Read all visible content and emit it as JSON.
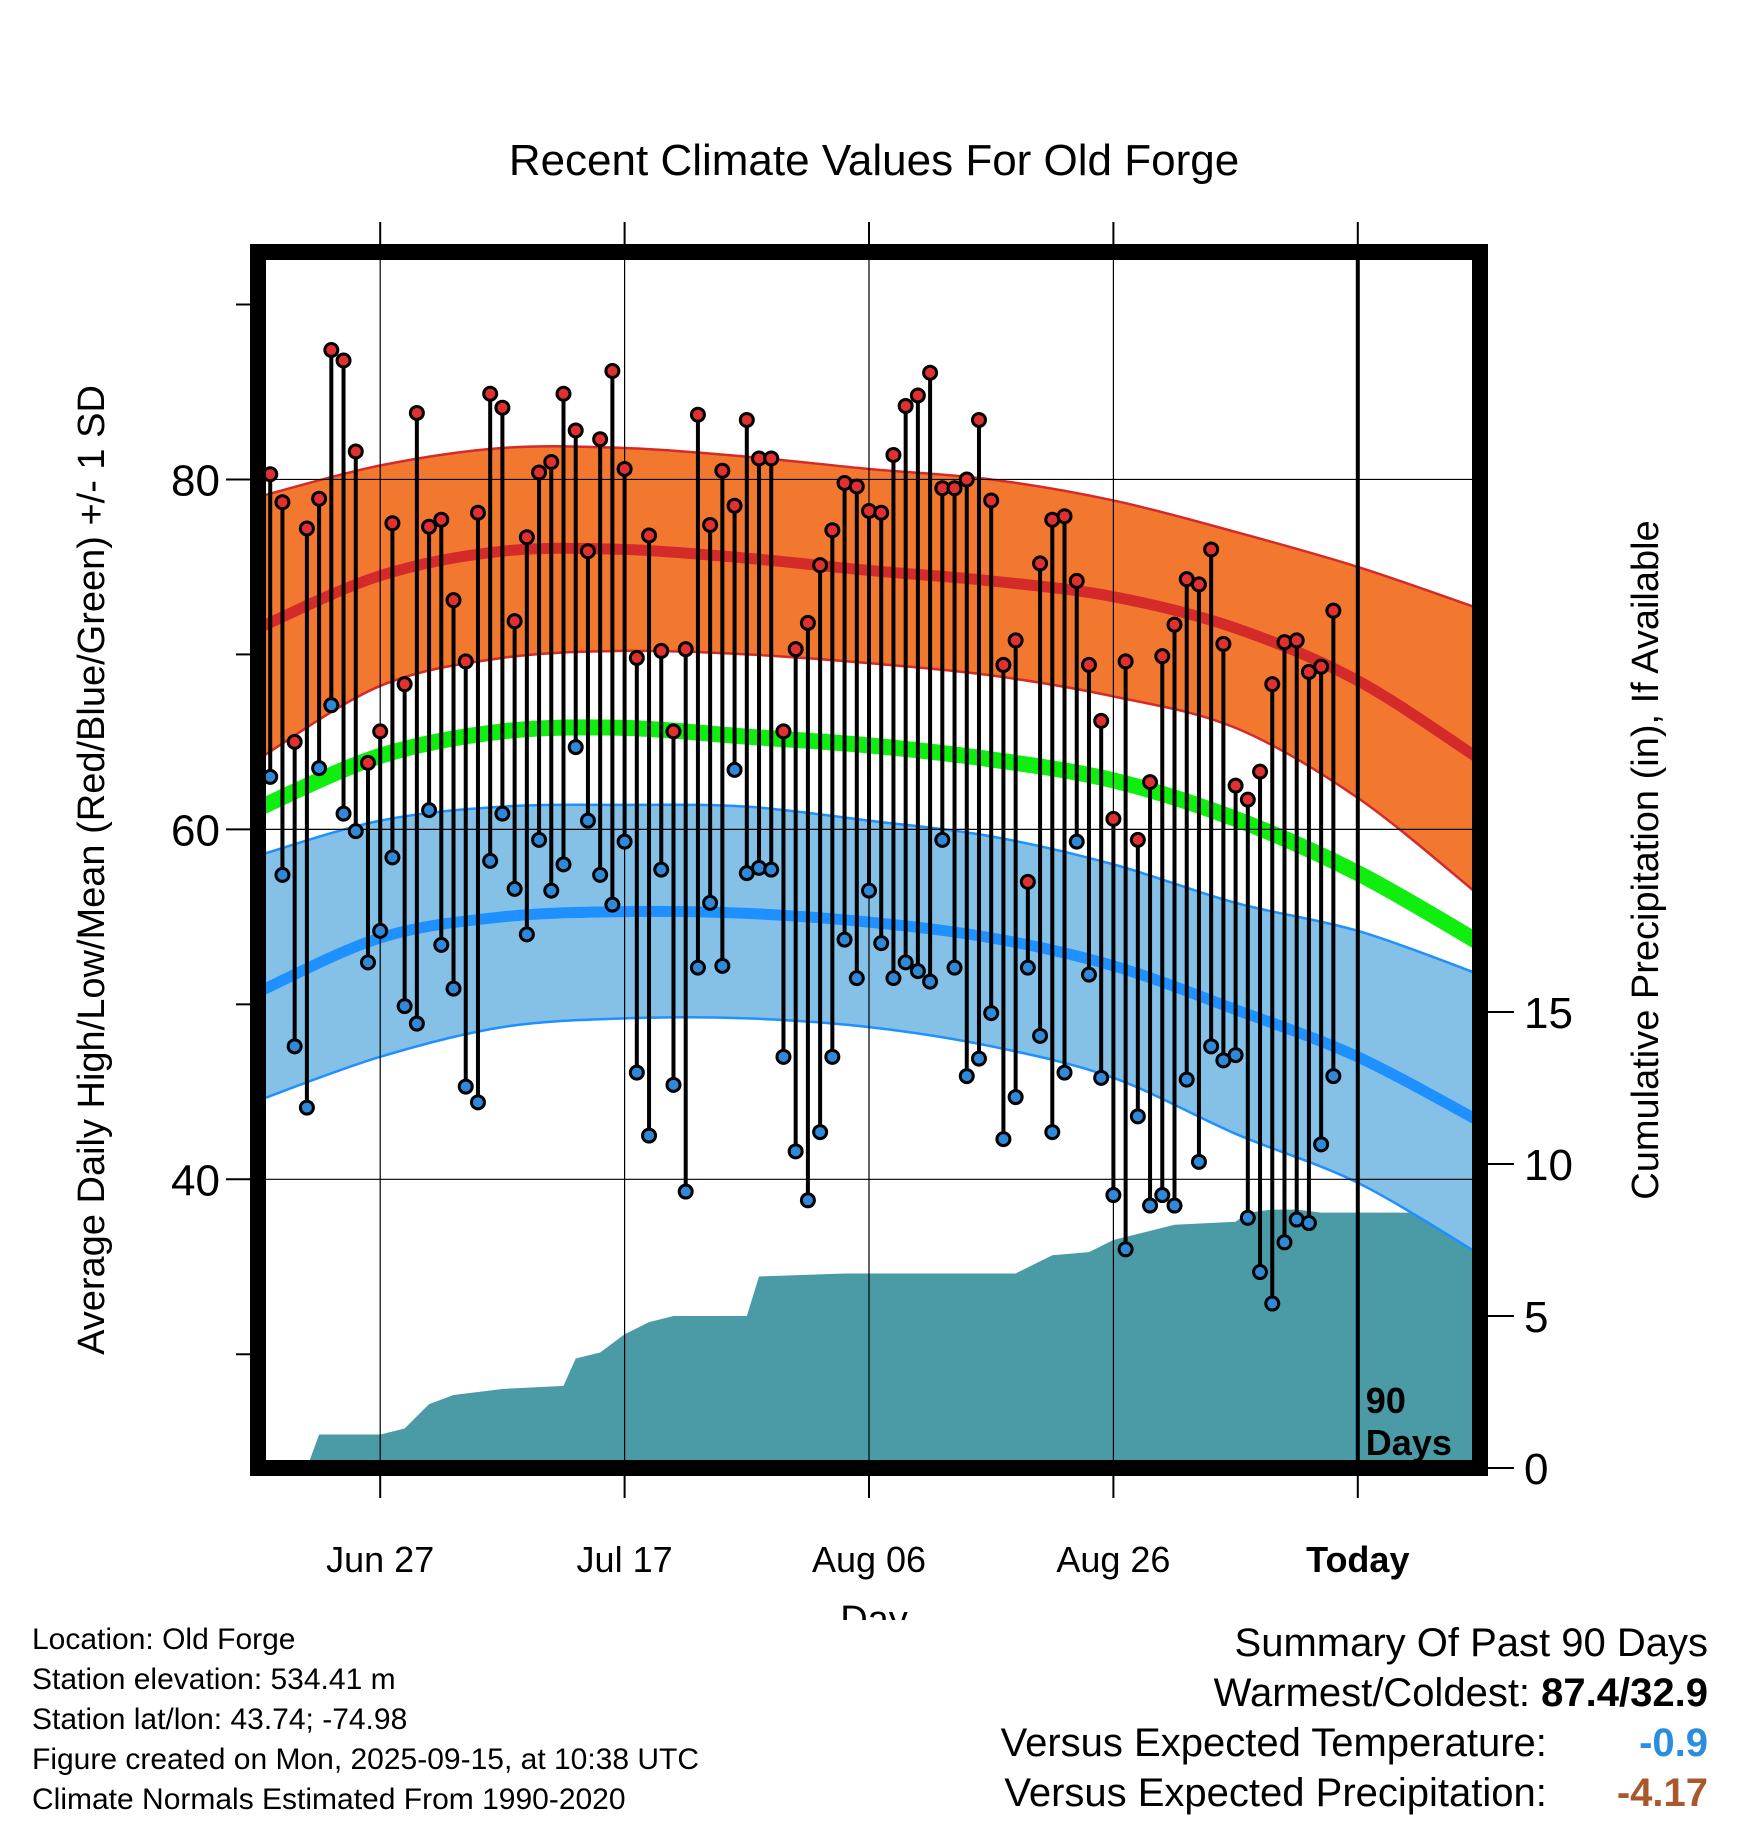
{
  "chart_data": {
    "type": "line",
    "title": "Recent Climate Values For Old Forge",
    "xlabel": "Day",
    "ylabel": "Average Daily High/Low/Mean (Red/Blue/Green) +/- 1 SD",
    "y2label": "Cumulative Precipitation (in), If Available",
    "x_tick_labels": [
      "Jun 27",
      "Jul 17",
      "Aug 06",
      "Aug 26",
      "Today"
    ],
    "x_tick_days": [
      10,
      30,
      50,
      70,
      90
    ],
    "xlim": [
      0,
      100
    ],
    "ylim": [
      23.5,
      93
    ],
    "y_ticks": [
      40,
      60,
      80
    ],
    "y_tick_labels": [
      "40",
      "60",
      "80"
    ],
    "y_minor_ticks": [
      30,
      50,
      70,
      90
    ],
    "y2lim": [
      0,
      40
    ],
    "y2_ticks": [
      0,
      5,
      10,
      15
    ],
    "y2_tick_labels": [
      "0",
      "5",
      "10",
      "15"
    ],
    "today_marker_label": [
      "90",
      "Days"
    ],
    "normals": {
      "day": [
        0,
        10,
        20,
        30,
        40,
        50,
        60,
        70,
        80,
        90,
        100
      ],
      "high_mean": [
        71.5,
        74.5,
        75.9,
        76.0,
        75.5,
        74.8,
        74.2,
        73.3,
        71.5,
        68.5,
        64.0
      ],
      "high_upper": [
        79.0,
        80.8,
        81.8,
        81.8,
        81.3,
        80.6,
        80.0,
        78.8,
        77.0,
        75.0,
        72.6
      ],
      "high_lower": [
        64.0,
        68.2,
        69.8,
        70.2,
        70.0,
        69.5,
        68.8,
        67.6,
        65.8,
        61.8,
        56.2
      ],
      "mean_normal": [
        61.2,
        64.2,
        65.6,
        65.8,
        65.3,
        64.8,
        64.0,
        62.8,
        60.6,
        57.5,
        53.5
      ],
      "low_mean": [
        50.7,
        53.8,
        55.0,
        55.3,
        55.2,
        54.7,
        53.8,
        52.2,
        49.7,
        47.0,
        43.3
      ],
      "low_upper": [
        58.5,
        60.5,
        61.3,
        61.4,
        61.3,
        60.5,
        59.6,
        58.0,
        55.8,
        54.2,
        51.7
      ],
      "low_lower": [
        44.5,
        47.0,
        48.7,
        49.2,
        49.2,
        48.7,
        47.6,
        45.8,
        42.6,
        39.8,
        35.7
      ]
    },
    "series": [
      {
        "name": "Daily High",
        "values": [
          65.8,
          80.3,
          78.7,
          65.0,
          77.2,
          78.9,
          87.4,
          86.8,
          81.6,
          63.8,
          65.6,
          77.5,
          68.3,
          83.8,
          77.3,
          77.7,
          73.1,
          69.6,
          78.1,
          84.9,
          84.1,
          71.9,
          76.7,
          80.4,
          81.0,
          84.9,
          82.8,
          75.9,
          82.3,
          86.2,
          80.6,
          69.8,
          76.8,
          70.2,
          65.6,
          70.3,
          83.7,
          77.4,
          80.5,
          78.5,
          83.4,
          81.2,
          81.2,
          65.6,
          70.3,
          71.8,
          75.1,
          77.1,
          79.8,
          79.6,
          78.2,
          78.1,
          81.4,
          84.2,
          84.8,
          86.1,
          79.5,
          79.5,
          80.0,
          83.4,
          78.8,
          69.4,
          70.8,
          57.0,
          75.2,
          77.7,
          77.9,
          74.2,
          69.4,
          66.2,
          60.6,
          69.6,
          59.4,
          62.7,
          69.9,
          71.7,
          74.3,
          74.0,
          76.0,
          70.6,
          62.5,
          61.7,
          63.3,
          68.3,
          70.7,
          70.8,
          69.0,
          69.3,
          72.5
        ]
      },
      {
        "name": "Daily Low",
        "values": [
          58.8,
          63.0,
          57.4,
          47.6,
          44.1,
          63.5,
          67.1,
          60.9,
          59.9,
          52.4,
          54.2,
          58.4,
          49.9,
          48.9,
          61.1,
          53.4,
          50.9,
          45.3,
          44.4,
          58.2,
          60.9,
          56.6,
          54.0,
          59.4,
          56.5,
          58.0,
          64.7,
          60.5,
          57.4,
          55.7,
          59.3,
          46.1,
          42.5,
          57.7,
          45.4,
          39.3,
          52.1,
          55.8,
          52.2,
          63.4,
          57.5,
          57.8,
          57.7,
          47.0,
          41.6,
          38.8,
          42.7,
          47.0,
          53.7,
          51.5,
          56.5,
          53.5,
          51.5,
          52.4,
          51.9,
          51.3,
          59.4,
          52.1,
          45.9,
          46.9,
          49.5,
          42.3,
          44.7,
          52.1,
          48.2,
          42.7,
          46.1,
          59.3,
          51.7,
          45.8,
          39.1,
          36.0,
          43.6,
          38.5,
          39.1,
          38.5,
          45.7,
          41.0,
          47.6,
          46.8,
          47.1,
          37.8,
          34.7,
          32.9,
          36.4,
          37.7,
          37.5,
          42.0,
          45.9
        ]
      }
    ],
    "precip_cumulative": {
      "day": [
        0,
        4,
        5,
        10,
        12,
        14,
        16,
        20,
        25,
        26,
        28,
        30,
        32,
        34,
        40,
        41,
        48,
        55,
        62,
        65,
        68,
        70,
        73,
        75,
        80,
        81,
        83,
        85,
        87,
        91,
        100
      ],
      "inches": [
        0.0,
        0.0,
        1.1,
        1.1,
        1.3,
        2.1,
        2.4,
        2.6,
        2.7,
        3.6,
        3.8,
        4.4,
        4.8,
        5.0,
        5.0,
        6.3,
        6.4,
        6.4,
        6.4,
        7.0,
        7.1,
        7.5,
        7.8,
        8.0,
        8.1,
        8.4,
        8.5,
        8.5,
        8.4,
        8.4,
        8.4
      ]
    },
    "colors": {
      "high_band": "#f27830",
      "high_line": "#d42a2a",
      "mean_line": "#10ee10",
      "low_band": "#85c0e6",
      "low_line": "#1e90ff",
      "precip": "#4a9ba6",
      "high_dot": "#e03030",
      "low_dot": "#2f88d8"
    }
  },
  "footer": {
    "location": "Location: Old Forge",
    "elevation": "Station elevation: 534.41 m",
    "latlon": "Station lat/lon: 43.74; -74.98",
    "created": "Figure created on Mon, 2025-09-15, at 10:38 UTC",
    "normals": "Climate Normals Estimated From 1990-2020"
  },
  "summary": {
    "title": "Summary Of Past 90 Days",
    "warm_cold_label": "Warmest/Coldest:",
    "warm_cold_value": "87.4/32.9",
    "temp_label": "Versus Expected Temperature:",
    "temp_value": "-0.9",
    "temp_color": "#2a8ddf",
    "precip_label": "Versus Expected Precipitation:",
    "precip_value": "-4.17",
    "precip_color": "#a8582a"
  }
}
